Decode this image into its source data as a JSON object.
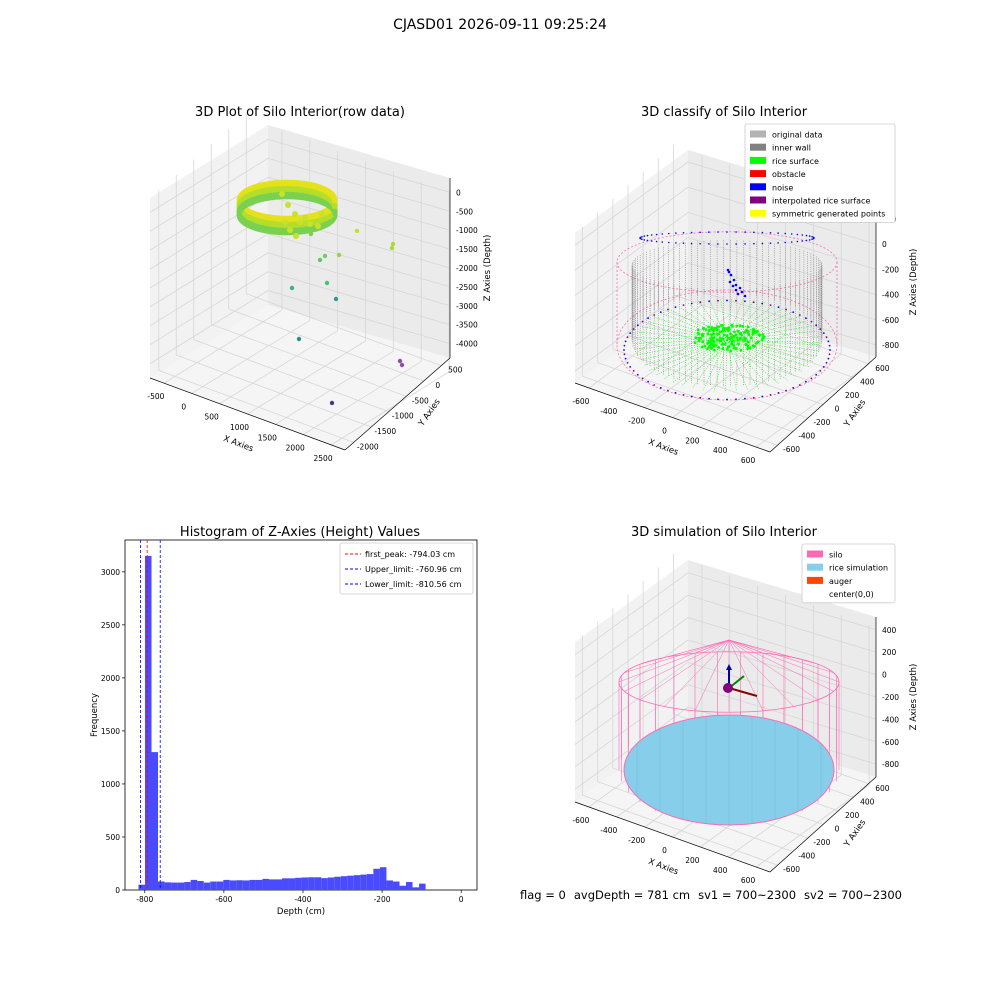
{
  "suptitle": "CJASD01 2026-09-11 09:25:24",
  "status": {
    "flag": "flag = 0",
    "avg_depth": "avgDepth = 781 cm",
    "sv1": "sv1 = 700~2300",
    "sv2": "sv2 = 700~2300"
  },
  "colors": {
    "original_data": "#b3b3b3",
    "inner_wall": "#808080",
    "rice_surface": "#00ff00",
    "obstacle": "#ff0000",
    "noise": "#0000ff",
    "interpolated_rice_surface": "#800080",
    "symmetric_generated_points": "#ffff00",
    "silo": "#ff69b4",
    "rice_simulation": "#87ceeb",
    "auger": "#ff4500",
    "hist_bar": "#4a4aff"
  },
  "chart_data": [
    {
      "type": "scatter3d",
      "title": "3D Plot of Silo Interior(row data)",
      "xlabel": "X Axies",
      "ylabel": "Y Axies",
      "zlabel": "Z Axies (Depth)",
      "x_ticks": [
        "-500",
        "0",
        "500",
        "1000",
        "1500",
        "2000",
        "2500"
      ],
      "y_ticks": [
        "-2000",
        "-1500",
        "-1000",
        "-500",
        "0",
        "500"
      ],
      "z_ticks": [
        "0",
        "-500",
        "-1000",
        "-1500",
        "-2000",
        "-2500",
        "-3000",
        "-3500",
        "-4000"
      ],
      "xlim": [
        -650,
        2550
      ],
      "ylim": [
        -2100,
        650
      ],
      "zlim": [
        -4100,
        100
      ]
    },
    {
      "type": "scatter3d",
      "title": "3D classify of Silo Interior",
      "xlabel": "X Axies",
      "ylabel": "Y Axies",
      "zlabel": "Z Axies (Depth)",
      "x_ticks": [
        "-600",
        "-400",
        "-200",
        "0",
        "200",
        "400",
        "600"
      ],
      "y_ticks": [
        "-600",
        "-400",
        "-200",
        "0",
        "200",
        "400",
        "600"
      ],
      "z_ticks": [
        "200",
        "0",
        "-200",
        "-400",
        "-600",
        "-800"
      ],
      "legend": [
        "original data",
        "inner wall",
        "rice surface",
        "obstacle",
        "noise",
        "interpolated rice surface",
        "symmetric generated points"
      ],
      "legend_placement": "top-right"
    },
    {
      "type": "bar",
      "title": "Histogram of Z-Axies (Height) Values",
      "xlabel": "Depth (cm)",
      "ylabel": "Frequency",
      "x_ticks": [
        -800,
        -600,
        -400,
        -200,
        0
      ],
      "y_ticks": [
        0,
        500,
        1000,
        1500,
        2000,
        2500,
        3000
      ],
      "xlim": [
        -850,
        40
      ],
      "ylim": [
        0,
        3300
      ],
      "bin_start": -816,
      "bin_width": 16.5,
      "values": [
        50,
        3150,
        1300,
        80,
        72,
        70,
        70,
        75,
        95,
        85,
        70,
        80,
        80,
        95,
        90,
        92,
        90,
        95,
        95,
        105,
        100,
        100,
        110,
        110,
        115,
        118,
        120,
        120,
        112,
        118,
        125,
        130,
        135,
        140,
        145,
        150,
        200,
        215,
        90,
        80,
        40,
        75,
        25,
        60
      ],
      "lines": [
        {
          "label": "first_peak: -794.03 cm",
          "x": -794.03,
          "color": "#ff0000"
        },
        {
          "label": "Upper_limit: -760.96 cm",
          "x": -760.96,
          "color": "#0000ff"
        },
        {
          "label": "Lower_limit: -810.56 cm",
          "x": -810.56,
          "color": "#0000ff"
        }
      ],
      "legend_placement": "top-right"
    },
    {
      "type": "surface3d",
      "title": "3D simulation of Silo Interior",
      "xlabel": "X Axies",
      "ylabel": "Y Axies",
      "zlabel": "Z Axies (Depth)",
      "x_ticks": [
        "-600",
        "-400",
        "-200",
        "0",
        "200",
        "400",
        "600"
      ],
      "y_ticks": [
        "-600",
        "-400",
        "-200",
        "0",
        "200",
        "400",
        "600"
      ],
      "z_ticks": [
        "400",
        "200",
        "0",
        "-200",
        "-400",
        "-600",
        "-800"
      ],
      "legend": [
        "silo",
        "rice simulation",
        "auger",
        "center(0,0)"
      ],
      "legend_placement": "top-right"
    }
  ]
}
